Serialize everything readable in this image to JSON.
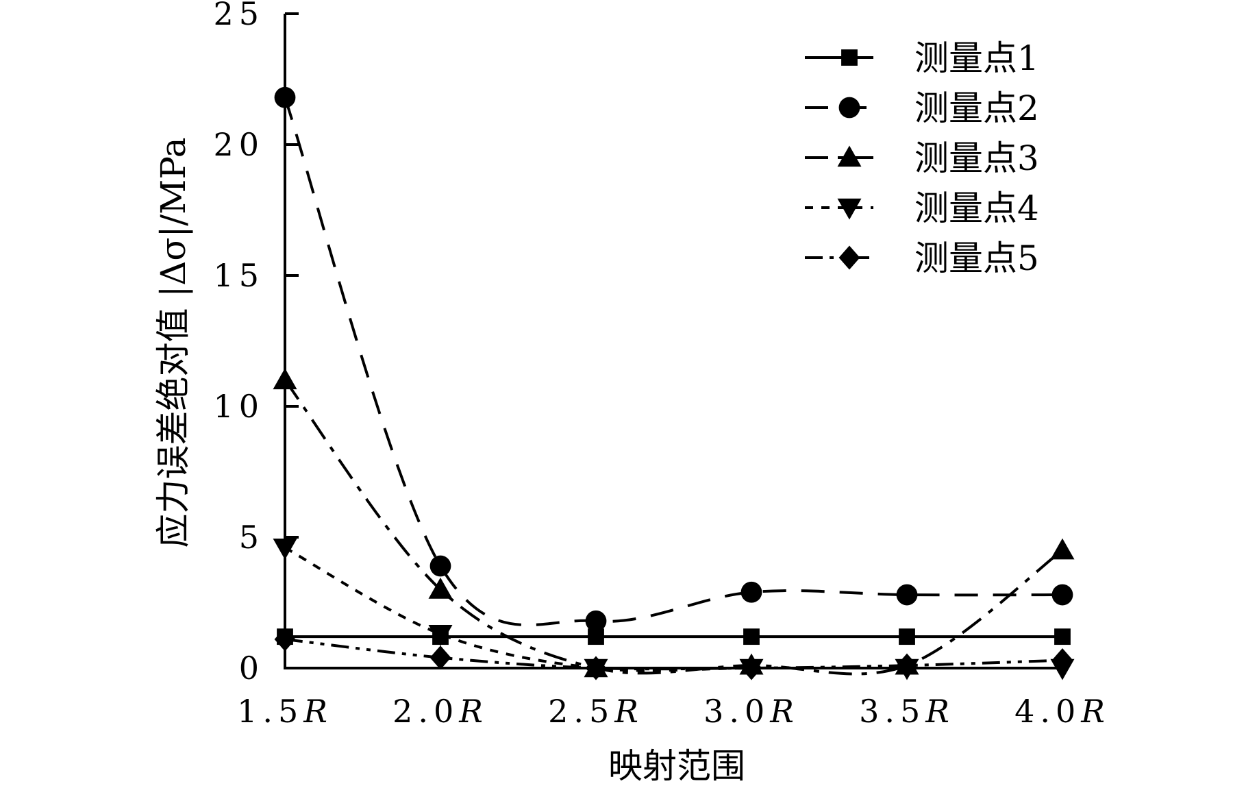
{
  "chart_data": {
    "type": "line",
    "title": "",
    "xlabel": "映射范围",
    "ylabel": "应力误差绝对值 |Δσ|/MPa",
    "categories": [
      "1.5R",
      "2.0R",
      "2.5R",
      "3.0R",
      "3.5R",
      "4.0R"
    ],
    "category_labels": [
      {
        "num": "1.5",
        "unit": "R"
      },
      {
        "num": "2.0",
        "unit": "R"
      },
      {
        "num": "2.5",
        "unit": "R"
      },
      {
        "num": "3.0",
        "unit": "R"
      },
      {
        "num": "3.5",
        "unit": "R"
      },
      {
        "num": "4.0",
        "unit": "R"
      }
    ],
    "ylim": [
      0,
      25
    ],
    "yticks": [
      0,
      5,
      10,
      15,
      20,
      25
    ],
    "grid": false,
    "legend_position": "top-right",
    "series": [
      {
        "name": "测量点1",
        "marker": "square",
        "line": "solid",
        "values": [
          1.2,
          1.2,
          1.2,
          1.2,
          1.2,
          1.2
        ]
      },
      {
        "name": "测量点2",
        "marker": "circle",
        "line": "dashed",
        "values": [
          21.8,
          3.9,
          1.8,
          2.9,
          2.8,
          2.8
        ]
      },
      {
        "name": "测量点3",
        "marker": "triangle-up",
        "line": "dash-dot",
        "values": [
          11.0,
          3.0,
          0.0,
          0.1,
          0.1,
          4.5
        ]
      },
      {
        "name": "测量点4",
        "marker": "triangle-down",
        "line": "dotted",
        "values": [
          4.6,
          1.3,
          0.0,
          0.0,
          0.0,
          0.0
        ]
      },
      {
        "name": "测量点5",
        "marker": "diamond",
        "line": "dash-dot-dot",
        "values": [
          1.1,
          0.4,
          0.0,
          0.0,
          0.1,
          0.3
        ]
      }
    ]
  }
}
